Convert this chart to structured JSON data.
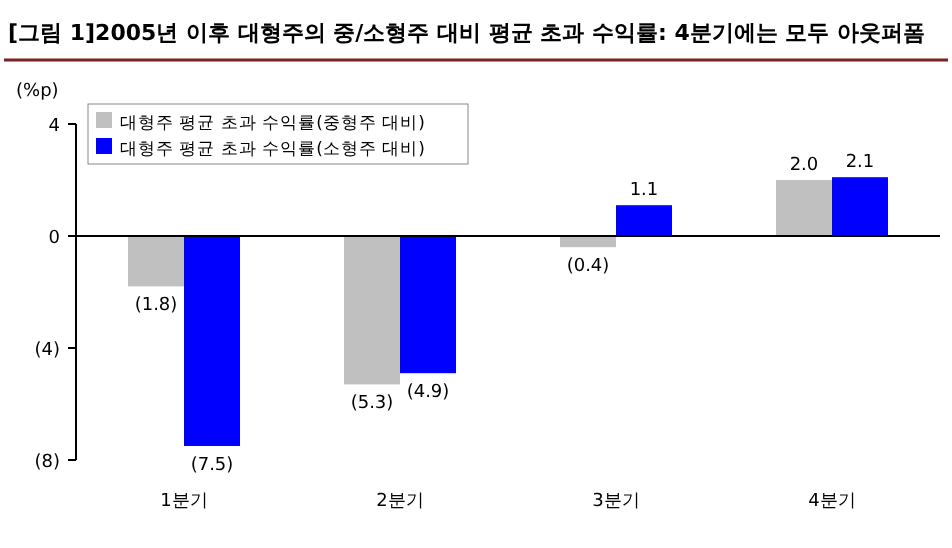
{
  "chart_data": {
    "type": "bar",
    "title": "[그림 1]2005년 이후 대형주의 중/소형주 대비 평균 초과 수익률: 4분기에는 모두 아웃퍼폼",
    "ylabel": "(%p)",
    "categories": [
      "1분기",
      "2분기",
      "3분기",
      "4분기"
    ],
    "series": [
      {
        "name": "대형주 평균 초과 수익률(중형주 대비)",
        "color": "#c0c0c0",
        "values": [
          -1.8,
          -5.3,
          -0.4,
          2.0
        ],
        "value_labels": [
          "(1.8)",
          "(5.3)",
          "(0.4)",
          "2.0"
        ]
      },
      {
        "name": "대형주 평균 초과 수익률(소형주 대비)",
        "color": "#0000ff",
        "values": [
          -7.5,
          -4.9,
          1.1,
          2.1
        ],
        "value_labels": [
          "(7.5)",
          "(4.9)",
          "1.1",
          "2.1"
        ]
      }
    ],
    "ylim": [
      -8,
      4
    ],
    "yticks": [
      4,
      0,
      {
        "value": -4,
        "label": "(4)"
      },
      {
        "value": -8,
        "label": "(8)"
      }
    ],
    "legend": "top left"
  }
}
